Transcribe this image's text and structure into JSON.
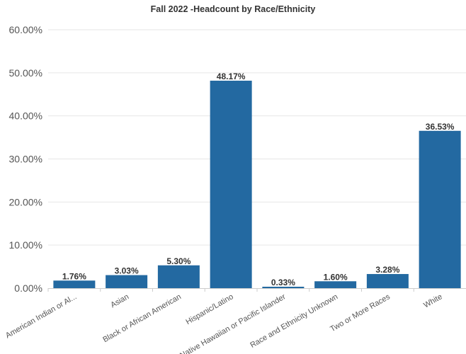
{
  "chart_data": {
    "type": "bar",
    "title": "Fall 2022 -Headcount by Race/Ethnicity",
    "xlabel": "",
    "ylabel": "",
    "categories": [
      "American Indian or Al...",
      "Asian",
      "Black or African American",
      "Hispanic/Latino",
      "Native Hawaiian or Pacific Islander",
      "Race and Ethnicity Unknown",
      "Two or More Races",
      "White"
    ],
    "values": [
      1.76,
      3.03,
      5.3,
      48.17,
      0.33,
      1.6,
      3.28,
      36.53
    ],
    "value_labels": [
      "1.76%",
      "3.03%",
      "5.30%",
      "48.17%",
      "0.33%",
      "1.60%",
      "3.28%",
      "36.53%"
    ],
    "ylim": [
      0,
      60
    ],
    "yticks": [
      0,
      10,
      20,
      30,
      40,
      50,
      60
    ],
    "ytick_labels": [
      "0.00%",
      "10.00%",
      "20.00%",
      "30.00%",
      "40.00%",
      "50.00%",
      "60.00%"
    ],
    "grid": true,
    "legend": "none",
    "colors": {
      "bar": "#2369a1",
      "grid": "#e6e6e6",
      "axis": "#cccccc",
      "text": "#333333"
    }
  }
}
